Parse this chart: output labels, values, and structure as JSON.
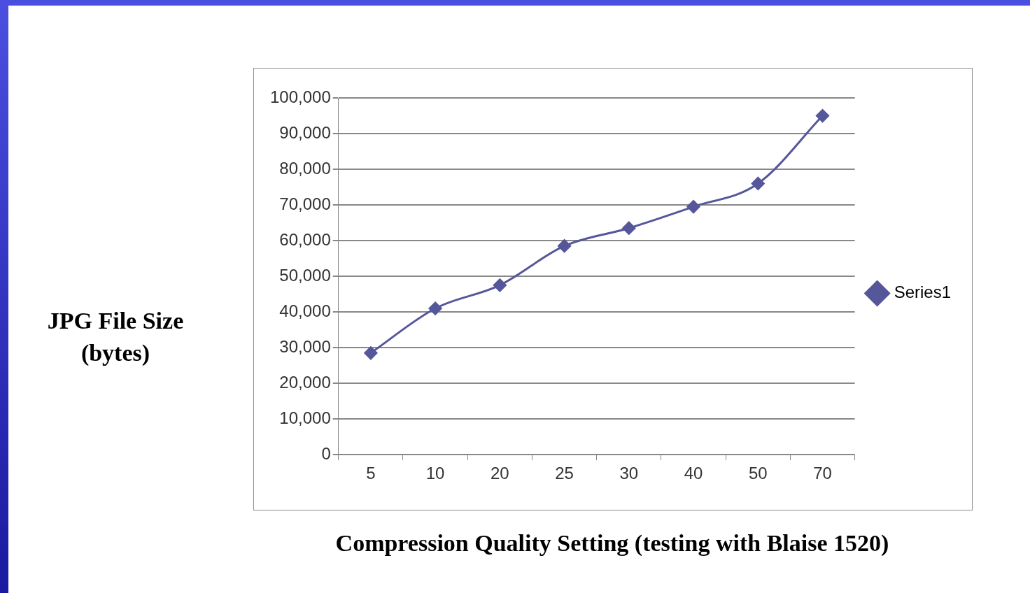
{
  "chart_data": {
    "type": "line",
    "xlabel": "Compression Quality Setting (testing with Blaise 1520)",
    "ylabel": "JPG File Size (bytes)",
    "categories": [
      "5",
      "10",
      "20",
      "25",
      "30",
      "40",
      "50",
      "70"
    ],
    "series": [
      {
        "name": "Series1",
        "color": "#55579a",
        "values": [
          28500,
          41000,
          47500,
          58500,
          63500,
          69500,
          76000,
          95000
        ]
      }
    ],
    "ylim": [
      0,
      100000
    ],
    "yticks": [
      {
        "value": 0,
        "label": "0"
      },
      {
        "value": 10000,
        "label": "10,000"
      },
      {
        "value": 20000,
        "label": "20,000"
      },
      {
        "value": 30000,
        "label": "30,000"
      },
      {
        "value": 40000,
        "label": "40,000"
      },
      {
        "value": 50000,
        "label": "50,000"
      },
      {
        "value": 60000,
        "label": "60,000"
      },
      {
        "value": 70000,
        "label": "70,000"
      },
      {
        "value": 80000,
        "label": "80,000"
      },
      {
        "value": 90000,
        "label": "90,000"
      },
      {
        "value": 100000,
        "label": "100,000"
      }
    ],
    "grid": "y",
    "legend": "right",
    "marker": "diamond",
    "line_style": "solid"
  }
}
